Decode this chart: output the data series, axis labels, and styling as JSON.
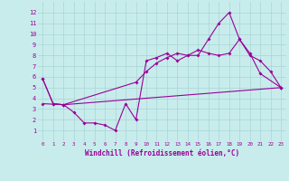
{
  "xlabel": "Windchill (Refroidissement éolien,°C)",
  "bg_color": "#c8ecec",
  "line_color": "#990099",
  "grid_color": "#add8d8",
  "xlim": [
    -0.5,
    23.5
  ],
  "ylim": [
    0,
    13
  ],
  "xticks": [
    0,
    1,
    2,
    3,
    4,
    5,
    6,
    7,
    8,
    9,
    10,
    11,
    12,
    13,
    14,
    15,
    16,
    17,
    18,
    19,
    20,
    21,
    22,
    23
  ],
  "yticks": [
    1,
    2,
    3,
    4,
    5,
    6,
    7,
    8,
    9,
    10,
    11,
    12
  ],
  "line1_x": [
    0,
    1,
    2,
    3,
    4,
    5,
    6,
    7,
    8,
    9,
    10,
    11,
    12,
    13,
    14,
    15,
    16,
    17,
    18,
    19,
    20,
    21,
    23
  ],
  "line1_y": [
    5.8,
    3.5,
    3.4,
    2.7,
    1.7,
    1.7,
    1.5,
    1.0,
    3.5,
    2.0,
    7.5,
    7.8,
    8.2,
    7.5,
    8.0,
    8.0,
    9.5,
    11.0,
    12.0,
    9.5,
    8.2,
    6.3,
    5.0
  ],
  "line2_x": [
    0,
    1,
    2,
    9,
    10,
    11,
    12,
    13,
    14,
    15,
    16,
    17,
    18,
    19,
    20,
    21,
    22,
    23
  ],
  "line2_y": [
    5.8,
    3.5,
    3.4,
    5.5,
    6.5,
    7.3,
    7.8,
    8.2,
    8.0,
    8.5,
    8.2,
    8.0,
    8.2,
    9.5,
    8.0,
    7.5,
    6.5,
    5.0
  ],
  "line3_x": [
    0,
    2,
    23
  ],
  "line3_y": [
    3.5,
    3.4,
    5.0
  ]
}
